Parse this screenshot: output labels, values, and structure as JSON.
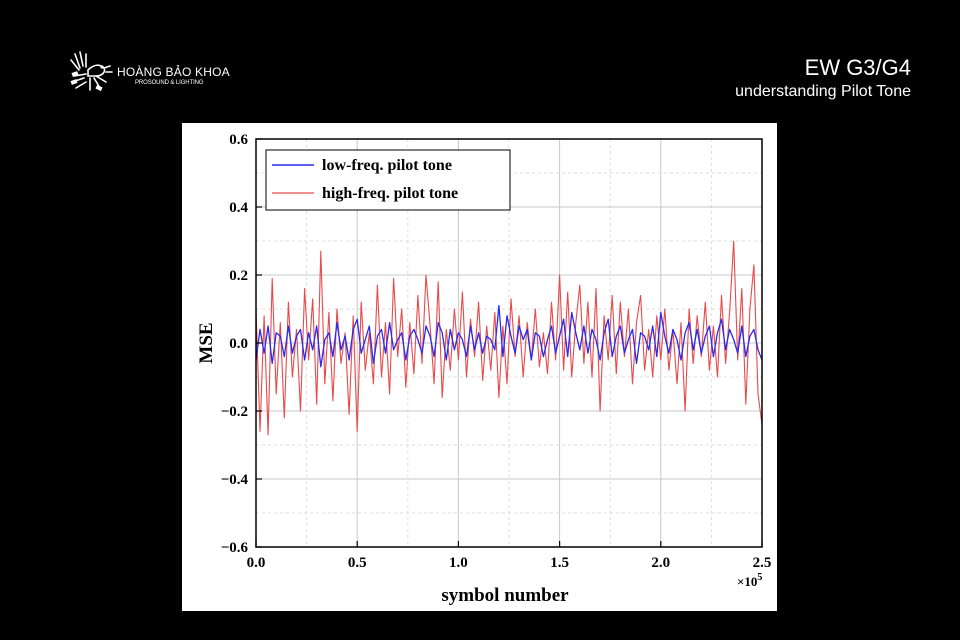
{
  "brand": {
    "name": "HOÀNG BẢO KHOA",
    "tagline": "PROSOUND & LIGHTING",
    "logo_icon": "phoenix-logo-icon"
  },
  "slide": {
    "title": "EW G3/G4",
    "subtitle": "understanding Pilot Tone"
  },
  "chart_data": {
    "type": "line",
    "title": "",
    "xlabel": "symbol number",
    "ylabel": "MSE",
    "x_multiplier_label": "×10",
    "x_multiplier_exponent": "5",
    "xlim": [
      0.0,
      2.5
    ],
    "ylim": [
      -0.6,
      0.6
    ],
    "x_ticks": [
      "0.0",
      "0.5",
      "1.0",
      "1.5",
      "2.0",
      "2.5"
    ],
    "y_ticks": [
      "0.6",
      "0.4",
      "0.2",
      "0.0",
      "−0.2",
      "−0.4",
      "−0.6"
    ],
    "grid": true,
    "legend_position": "top-left",
    "series": [
      {
        "name": "low-freq. pilot tone",
        "color": "#2a2af0",
        "x": [
          0.0,
          0.02,
          0.04,
          0.06,
          0.08,
          0.1,
          0.12,
          0.14,
          0.16,
          0.18,
          0.2,
          0.22,
          0.24,
          0.26,
          0.28,
          0.3,
          0.32,
          0.34,
          0.36,
          0.38,
          0.4,
          0.42,
          0.44,
          0.46,
          0.48,
          0.5,
          0.52,
          0.54,
          0.56,
          0.58,
          0.6,
          0.62,
          0.64,
          0.66,
          0.68,
          0.7,
          0.72,
          0.74,
          0.76,
          0.78,
          0.8,
          0.82,
          0.84,
          0.86,
          0.88,
          0.9,
          0.92,
          0.94,
          0.96,
          0.98,
          1.0,
          1.02,
          1.04,
          1.06,
          1.08,
          1.1,
          1.12,
          1.14,
          1.16,
          1.18,
          1.2,
          1.22,
          1.24,
          1.26,
          1.28,
          1.3,
          1.32,
          1.34,
          1.36,
          1.38,
          1.4,
          1.42,
          1.44,
          1.46,
          1.48,
          1.5,
          1.52,
          1.54,
          1.56,
          1.58,
          1.6,
          1.62,
          1.64,
          1.66,
          1.68,
          1.7,
          1.72,
          1.74,
          1.76,
          1.78,
          1.8,
          1.82,
          1.84,
          1.86,
          1.88,
          1.9,
          1.92,
          1.94,
          1.96,
          1.98,
          2.0,
          2.02,
          2.04,
          2.06,
          2.08,
          2.1,
          2.12,
          2.14,
          2.16,
          2.18,
          2.2,
          2.22,
          2.24,
          2.26,
          2.28,
          2.3,
          2.32,
          2.34,
          2.36,
          2.38,
          2.4,
          2.42,
          2.44,
          2.46,
          2.48,
          2.5
        ],
        "values": [
          -0.05,
          0.04,
          -0.03,
          0.05,
          -0.06,
          0.03,
          0.02,
          -0.04,
          0.05,
          -0.03,
          0.02,
          0.04,
          -0.05,
          0.03,
          -0.02,
          0.05,
          -0.07,
          0.01,
          0.03,
          -0.04,
          0.06,
          -0.02,
          0.02,
          -0.05,
          0.04,
          0.07,
          -0.03,
          0.01,
          0.05,
          -0.06,
          0.02,
          0.04,
          -0.03,
          0.06,
          -0.02,
          0.01,
          0.03,
          -0.05,
          0.02,
          0.04,
          0.01,
          -0.03,
          0.05,
          0.02,
          -0.04,
          0.06,
          0.03,
          -0.05,
          0.04,
          -0.02,
          0.03,
          0.01,
          -0.04,
          0.05,
          -0.02,
          0.03,
          -0.03,
          0.02,
          0.01,
          -0.02,
          0.11,
          -0.04,
          0.08,
          0.02,
          -0.03,
          0.05,
          0.01,
          0.04,
          -0.05,
          0.03,
          0.02,
          -0.04,
          0.01,
          0.05,
          -0.03,
          0.02,
          0.07,
          -0.04,
          0.09,
          0.03,
          -0.02,
          0.05,
          -0.03,
          0.04,
          0.01,
          -0.05,
          0.03,
          0.07,
          -0.04,
          0.02,
          0.05,
          -0.03,
          0.01,
          0.04,
          -0.06,
          0.03,
          0.02,
          -0.02,
          0.05,
          -0.04,
          0.09,
          0.02,
          -0.03,
          0.04,
          0.01,
          -0.05,
          0.03,
          0.06,
          -0.02,
          0.04,
          -0.03,
          0.02,
          0.05,
          -0.04,
          0.03,
          0.07,
          -0.02,
          0.04,
          0.01,
          -0.03,
          0.05,
          -0.04,
          0.02,
          0.04,
          -0.02,
          -0.05
        ]
      },
      {
        "name": "high-freq. pilot tone",
        "color": "#e84a4a",
        "x": [
          0.0,
          0.02,
          0.04,
          0.06,
          0.08,
          0.1,
          0.12,
          0.14,
          0.16,
          0.18,
          0.2,
          0.22,
          0.24,
          0.26,
          0.28,
          0.3,
          0.32,
          0.34,
          0.36,
          0.38,
          0.4,
          0.42,
          0.44,
          0.46,
          0.48,
          0.5,
          0.52,
          0.54,
          0.56,
          0.58,
          0.6,
          0.62,
          0.64,
          0.66,
          0.68,
          0.7,
          0.72,
          0.74,
          0.76,
          0.78,
          0.8,
          0.82,
          0.84,
          0.86,
          0.88,
          0.9,
          0.92,
          0.94,
          0.96,
          0.98,
          1.0,
          1.02,
          1.04,
          1.06,
          1.08,
          1.1,
          1.12,
          1.14,
          1.16,
          1.18,
          1.2,
          1.22,
          1.24,
          1.26,
          1.28,
          1.3,
          1.32,
          1.34,
          1.36,
          1.38,
          1.4,
          1.42,
          1.44,
          1.46,
          1.48,
          1.5,
          1.52,
          1.54,
          1.56,
          1.58,
          1.6,
          1.62,
          1.64,
          1.66,
          1.68,
          1.7,
          1.72,
          1.74,
          1.76,
          1.78,
          1.8,
          1.82,
          1.84,
          1.86,
          1.88,
          1.9,
          1.92,
          1.94,
          1.96,
          1.98,
          2.0,
          2.02,
          2.04,
          2.06,
          2.08,
          2.1,
          2.12,
          2.14,
          2.16,
          2.18,
          2.2,
          2.22,
          2.24,
          2.26,
          2.28,
          2.3,
          2.32,
          2.34,
          2.36,
          2.38,
          2.4,
          2.42,
          2.44,
          2.46,
          2.48,
          2.5
        ],
        "values": [
          0.1,
          -0.26,
          0.08,
          -0.27,
          0.19,
          -0.15,
          0.06,
          -0.22,
          0.12,
          -0.1,
          0.04,
          -0.2,
          0.16,
          -0.05,
          0.13,
          -0.18,
          0.27,
          -0.12,
          0.09,
          -0.17,
          0.1,
          -0.06,
          0.03,
          -0.21,
          0.08,
          -0.26,
          0.12,
          -0.08,
          0.03,
          -0.12,
          0.17,
          -0.1,
          0.06,
          -0.15,
          0.19,
          -0.04,
          0.1,
          -0.13,
          0.06,
          -0.09,
          0.14,
          -0.06,
          0.2,
          0.05,
          -0.12,
          0.18,
          -0.16,
          0.04,
          -0.08,
          0.1,
          -0.05,
          0.15,
          -0.1,
          0.07,
          -0.04,
          0.12,
          -0.11,
          0.05,
          -0.08,
          0.09,
          -0.16,
          0.05,
          -0.12,
          0.13,
          -0.04,
          0.08,
          -0.1,
          0.06,
          -0.05,
          0.1,
          -0.07,
          0.03,
          -0.09,
          0.12,
          -0.05,
          0.2,
          -0.08,
          0.15,
          -0.1,
          0.06,
          0.17,
          -0.06,
          0.12,
          -0.1,
          0.16,
          -0.2,
          0.08,
          -0.05,
          0.14,
          -0.09,
          0.12,
          -0.04,
          0.1,
          -0.12,
          0.06,
          0.14,
          -0.08,
          0.04,
          -0.1,
          0.08,
          -0.05,
          0.1,
          -0.08,
          0.04,
          -0.12,
          0.06,
          -0.2,
          0.1,
          -0.06,
          0.08,
          -0.04,
          0.12,
          -0.08,
          0.05,
          -0.1,
          0.14,
          -0.06,
          0.09,
          0.3,
          -0.05,
          0.16,
          -0.18,
          0.1,
          0.23,
          -0.15,
          -0.24
        ]
      }
    ]
  }
}
